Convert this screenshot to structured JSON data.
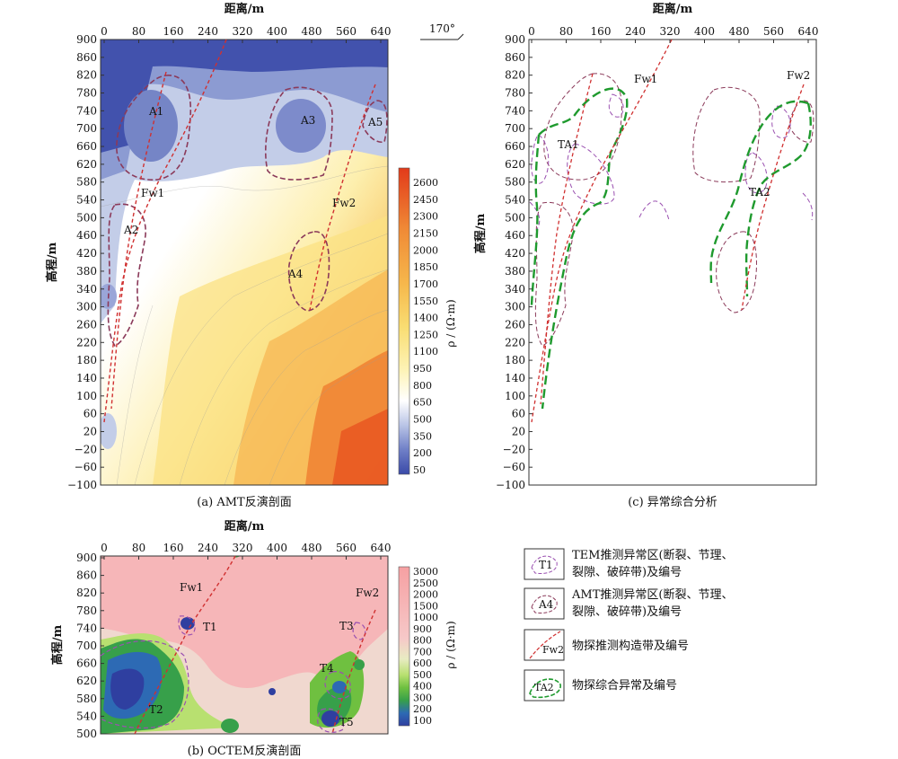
{
  "panel_a": {
    "caption": "(a) AMT反演剖面",
    "x_axis_title": "距离/m",
    "y_axis_title": "高程/m",
    "x_ticks": [
      "0",
      "80",
      "160",
      "240",
      "320",
      "400",
      "480",
      "560",
      "640"
    ],
    "y_ticks": [
      "900",
      "860",
      "820",
      "780",
      "740",
      "700",
      "660",
      "620",
      "580",
      "540",
      "500",
      "460",
      "420",
      "380",
      "340",
      "300",
      "260",
      "220",
      "180",
      "140",
      "100",
      "60",
      "20",
      "−20",
      "−60",
      "−100"
    ],
    "colorbar_ticks": [
      "2600",
      "2450",
      "2300",
      "2150",
      "2000",
      "1850",
      "1700",
      "1550",
      "1400",
      "1250",
      "1100",
      "950",
      "800",
      "650",
      "500",
      "350",
      "200",
      "50"
    ],
    "colorbar_title": "ρ / (Ω·m)",
    "anomalies": [
      "A1",
      "A2",
      "A3",
      "A4",
      "A5"
    ],
    "fault_labels": [
      "Fw1",
      "Fw2"
    ]
  },
  "panel_b": {
    "caption": "(b) OCTEM反演剖面",
    "x_axis_title": "距离/m",
    "y_axis_title": "高程/m",
    "x_ticks": [
      "0",
      "80",
      "160",
      "240",
      "320",
      "400",
      "480",
      "560",
      "640"
    ],
    "y_ticks": [
      "900",
      "860",
      "820",
      "780",
      "740",
      "700",
      "660",
      "620",
      "580",
      "540",
      "500"
    ],
    "colorbar_ticks": [
      "3000",
      "2500",
      "2000",
      "1500",
      "1000",
      "900",
      "800",
      "700",
      "600",
      "500",
      "400",
      "300",
      "200",
      "100"
    ],
    "colorbar_title": "ρ / (Ω·m)",
    "anomalies": [
      "T1",
      "T2",
      "T3",
      "T4",
      "T5"
    ],
    "fault_labels": [
      "Fw1",
      "Fw2"
    ]
  },
  "panel_c": {
    "caption": "(c) 异常综合分析",
    "x_axis_title": "距离/m",
    "y_axis_title": "高程/m",
    "azimuth": "170°",
    "x_ticks": [
      "0",
      "80",
      "160",
      "240",
      "320",
      "400",
      "480",
      "560",
      "640"
    ],
    "y_ticks": [
      "900",
      "860",
      "820",
      "780",
      "740",
      "700",
      "660",
      "620",
      "580",
      "540",
      "500",
      "460",
      "420",
      "380",
      "340",
      "300",
      "260",
      "220",
      "180",
      "140",
      "100",
      "60",
      "20",
      "−20",
      "−60",
      "−100"
    ],
    "anomalies": [
      "TA1",
      "TA2"
    ],
    "fault_labels": [
      "Fw1",
      "Fw2"
    ]
  },
  "legend": {
    "items": [
      {
        "symbol_label": "T1",
        "text_lines": [
          "TEM推测异常区(断裂、节理、",
          "裂隙、破碎带)及编号"
        ]
      },
      {
        "symbol_label": "A4",
        "text_lines": [
          "AMT推测异常区(断裂、节理、",
          "裂隙、破碎带)及编号"
        ]
      },
      {
        "symbol_label": "Fw2",
        "text_lines": [
          "物探推测构造带及编号"
        ]
      },
      {
        "symbol_label": "TA2",
        "text_lines": [
          "物探综合异常及编号"
        ]
      }
    ]
  },
  "colors": {
    "amt_scale": [
      "#3a4aa8",
      "#5868bb",
      "#8c9bd2",
      "#c3cde8",
      "#ffffff",
      "#fdf6c0",
      "#fbe88c",
      "#f8c85f",
      "#f4a540",
      "#ef7d30",
      "#e8521f"
    ],
    "octem_scale": [
      "#2f3fa0",
      "#2d6ab4",
      "#37a04a",
      "#6fc040",
      "#b8e070",
      "#e8ecc2",
      "#f6c8c8",
      "#f8a6a6"
    ],
    "fault_line": "#d03030",
    "amt_anomaly": "#8b3a5a",
    "tem_anomaly": "#9a50b0",
    "combined_anomaly": "#1f9a2e"
  }
}
